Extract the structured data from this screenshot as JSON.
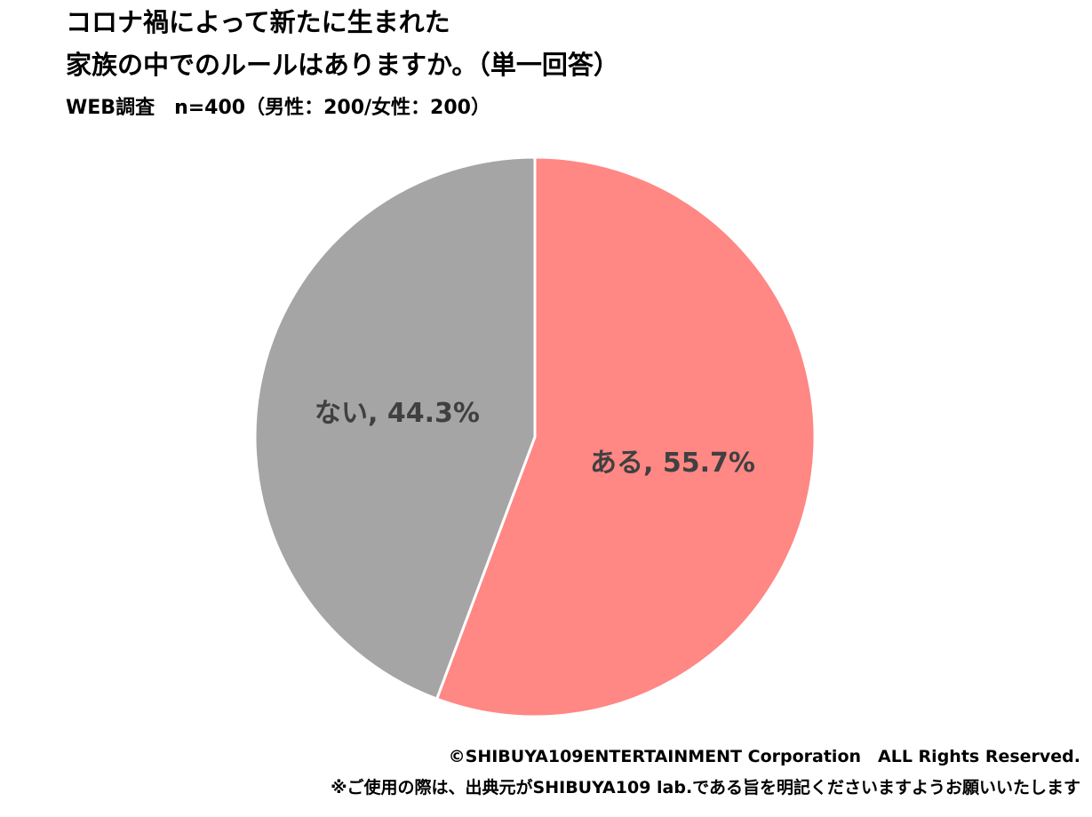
{
  "chart_data": {
    "type": "pie",
    "title": [
      "コロナ禍によって新たに生まれた",
      "家族の中でのルールはありますか。（単一回答）"
    ],
    "subtitle": "WEB調査　n=400（男性：200/女性：200）",
    "values": [
      55.7,
      44.3
    ],
    "value_labels": [
      "ある, 55.7%",
      "ない, 44.3%"
    ],
    "colors": [
      "#ff8784",
      "#a5a5a5"
    ],
    "footer": [
      "©SHIBUYA109ENTERTAINMENT Corporation　ALL Rights Reserved.",
      "※ご使用の際は、出典元がSHIBUYA109 lab.である旨を明記くださいますようお願いいたします"
    ]
  }
}
